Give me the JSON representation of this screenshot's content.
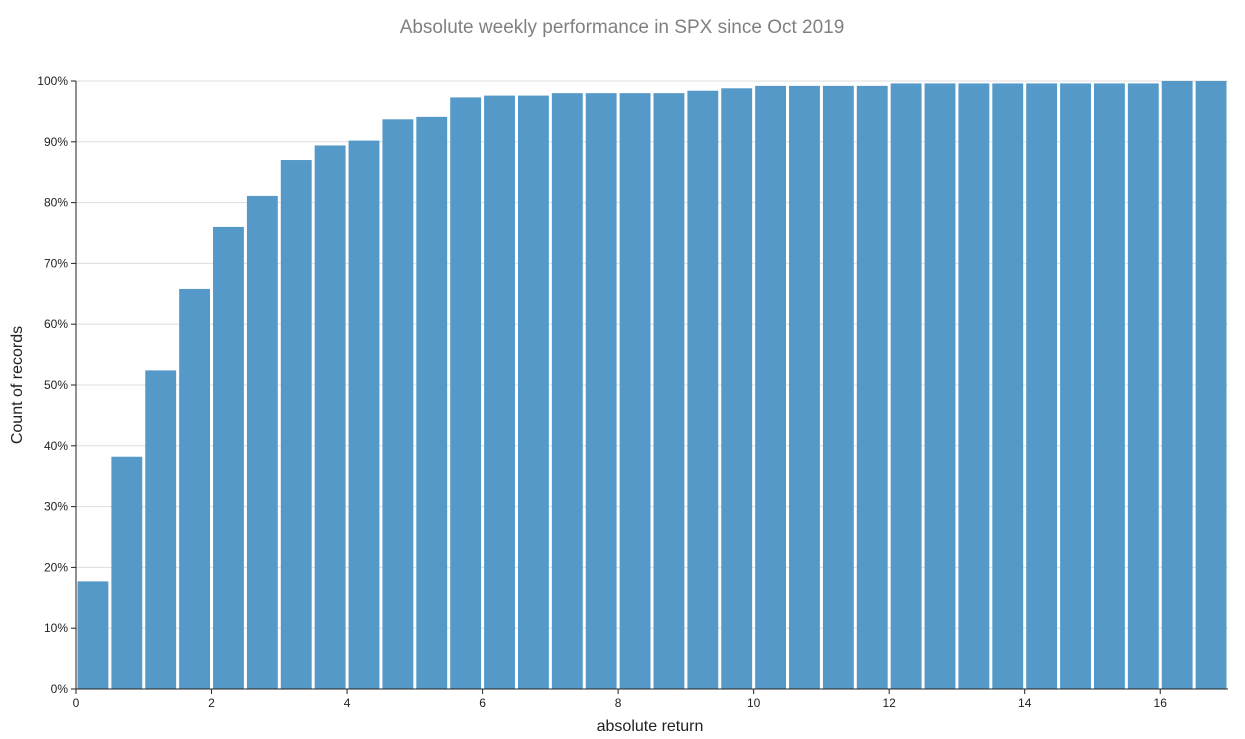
{
  "chart_data": {
    "type": "bar",
    "title": "Absolute weekly performance in SPX since Oct 2019",
    "xlabel": "absolute return",
    "ylabel": "Count of records",
    "bin_width": 0.5,
    "xlim": [
      0,
      17
    ],
    "ylim": [
      0,
      100
    ],
    "x_ticks": [
      0,
      2,
      4,
      6,
      8,
      10,
      12,
      14,
      16
    ],
    "x_tick_labels": [
      "0",
      "2",
      "4",
      "6",
      "8",
      "10",
      "12",
      "14",
      "16"
    ],
    "y_ticks": [
      0,
      10,
      20,
      30,
      40,
      50,
      60,
      70,
      80,
      90,
      100
    ],
    "y_tick_labels": [
      "0%",
      "10%",
      "20%",
      "30%",
      "40%",
      "50%",
      "60%",
      "70%",
      "80%",
      "90%",
      "100%"
    ],
    "grid": true,
    "bar_color": "#5499c7",
    "bins": [
      {
        "x0": 0.0,
        "x1": 0.5,
        "value": 17.7
      },
      {
        "x0": 0.5,
        "x1": 1.0,
        "value": 38.2
      },
      {
        "x0": 1.0,
        "x1": 1.5,
        "value": 52.4
      },
      {
        "x0": 1.5,
        "x1": 2.0,
        "value": 65.8
      },
      {
        "x0": 2.0,
        "x1": 2.5,
        "value": 76.0
      },
      {
        "x0": 2.5,
        "x1": 3.0,
        "value": 81.1
      },
      {
        "x0": 3.0,
        "x1": 3.5,
        "value": 87.0
      },
      {
        "x0": 3.5,
        "x1": 4.0,
        "value": 89.4
      },
      {
        "x0": 4.0,
        "x1": 4.5,
        "value": 90.2
      },
      {
        "x0": 4.5,
        "x1": 5.0,
        "value": 93.7
      },
      {
        "x0": 5.0,
        "x1": 5.5,
        "value": 94.1
      },
      {
        "x0": 5.5,
        "x1": 6.0,
        "value": 97.3
      },
      {
        "x0": 6.0,
        "x1": 6.5,
        "value": 97.6
      },
      {
        "x0": 6.5,
        "x1": 7.0,
        "value": 97.6
      },
      {
        "x0": 7.0,
        "x1": 7.5,
        "value": 98.0
      },
      {
        "x0": 7.5,
        "x1": 8.0,
        "value": 98.0
      },
      {
        "x0": 8.0,
        "x1": 8.5,
        "value": 98.0
      },
      {
        "x0": 8.5,
        "x1": 9.0,
        "value": 98.0
      },
      {
        "x0": 9.0,
        "x1": 9.5,
        "value": 98.4
      },
      {
        "x0": 9.5,
        "x1": 10.0,
        "value": 98.8
      },
      {
        "x0": 10.0,
        "x1": 10.5,
        "value": 99.2
      },
      {
        "x0": 10.5,
        "x1": 11.0,
        "value": 99.2
      },
      {
        "x0": 11.0,
        "x1": 11.5,
        "value": 99.2
      },
      {
        "x0": 11.5,
        "x1": 12.0,
        "value": 99.2
      },
      {
        "x0": 12.0,
        "x1": 12.5,
        "value": 99.6
      },
      {
        "x0": 12.5,
        "x1": 13.0,
        "value": 99.6
      },
      {
        "x0": 13.0,
        "x1": 13.5,
        "value": 99.6
      },
      {
        "x0": 13.5,
        "x1": 14.0,
        "value": 99.6
      },
      {
        "x0": 14.0,
        "x1": 14.5,
        "value": 99.6
      },
      {
        "x0": 14.5,
        "x1": 15.0,
        "value": 99.6
      },
      {
        "x0": 15.0,
        "x1": 15.5,
        "value": 99.6
      },
      {
        "x0": 15.5,
        "x1": 16.0,
        "value": 99.6
      },
      {
        "x0": 16.0,
        "x1": 16.5,
        "value": 100.0
      },
      {
        "x0": 16.5,
        "x1": 17.0,
        "value": 100.0
      }
    ]
  }
}
